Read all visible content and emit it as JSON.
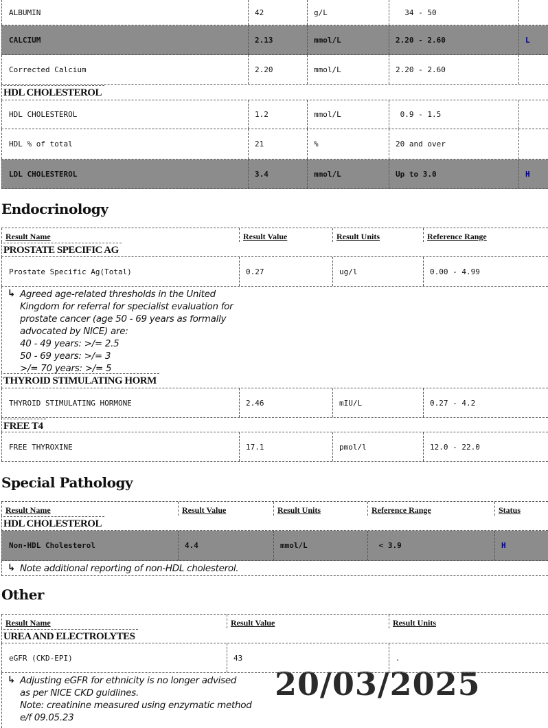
{
  "table_top": {
    "items": [
      {
        "type": "result",
        "name": "ALBUMIN",
        "value": "42",
        "units": "g/L",
        "range": "  34 - 50",
        "status": ""
      },
      {
        "type": "result",
        "name": "CALCIUM",
        "value": "2.13",
        "units": "mmol/L",
        "range": "2.20 - 2.60",
        "status": "L"
      },
      {
        "type": "result",
        "name": "Corrected Calcium",
        "value": "2.20",
        "units": "mmol/L",
        "range": "2.20 - 2.60",
        "status": ""
      },
      {
        "type": "group",
        "name": "HDL CHOLESTEROL"
      },
      {
        "type": "result",
        "name": "HDL CHOLESTEROL",
        "value": "1.2",
        "units": "mmol/L",
        "range": " 0.9 - 1.5",
        "status": ""
      },
      {
        "type": "result",
        "name": "HDL % of total",
        "value": "21",
        "units": "%",
        "range": "20 and over",
        "status": ""
      },
      {
        "type": "result",
        "name": "LDL CHOLESTEROL",
        "value": "3.4",
        "units": "mmol/L",
        "range": "Up to 3.0",
        "status": "H"
      }
    ]
  },
  "endocrinology": {
    "heading": "Endocrinology",
    "columns": [
      "Result Name",
      "Result Value",
      "Result Units",
      "Reference Range"
    ],
    "items": [
      {
        "type": "group",
        "name": "PROSTATE SPECIFIC AG"
      },
      {
        "type": "result",
        "name": "Prostate Specific Ag(Total)",
        "value": "0.27",
        "units": "ug/l",
        "range": "0.00 - 4.99"
      },
      {
        "type": "note",
        "text": "Agreed age-related thresholds in the United\nKingdom for referral for specialist evaluation for\nprostate cancer (age 50 - 69 years as formally\nadvocated by NICE) are:\n40 - 49 years: >/= 2.5\n50 - 69 years: >/= 3\n>/= 70 years: >/= 5"
      },
      {
        "type": "group",
        "name": "THYROID STIMULATING HORM"
      },
      {
        "type": "result",
        "name": "THYROID STIMULATING HORMONE",
        "value": "2.46",
        "units": "mIU/L",
        "range": "0.27 - 4.2"
      },
      {
        "type": "group",
        "name": "FREE T4"
      },
      {
        "type": "result",
        "name": "FREE THYROXINE",
        "value": "17.1",
        "units": "pmol/l",
        "range": "12.0 - 22.0"
      }
    ]
  },
  "special_pathology": {
    "heading": "Special Pathology",
    "columns": [
      "Result Name",
      "Result Value",
      "Result Units",
      "Reference Range",
      "Status"
    ],
    "items": [
      {
        "type": "group",
        "name": "HDL CHOLESTEROL"
      },
      {
        "type": "result",
        "name": "Non-HDL Cholesterol",
        "value": "4.4",
        "units": "mmol/L",
        "range": " < 3.9",
        "status": "H"
      },
      {
        "type": "note",
        "text": "Note additional reporting of non-HDL cholesterol."
      }
    ]
  },
  "other": {
    "heading": "Other",
    "columns": [
      "Result Name",
      "Result Value",
      "Result Units"
    ],
    "items": [
      {
        "type": "group",
        "name": "UREA AND ELECTROLYTES"
      },
      {
        "type": "result",
        "name": "eGFR (CKD-EPI)",
        "value": "43",
        "units": "."
      },
      {
        "type": "note",
        "text": "Adjusting eGFR for ethnicity is no longer advised\nas per NICE CKD guidlines.\nNote: creatinine measured using enzymatic method\ne/f 09.05.23"
      }
    ]
  },
  "date_stamp": "20/03/2025",
  "colors": {
    "flag_row": "#8c8c8c",
    "status_text": "#000080"
  },
  "icons": {
    "note_arrow": "return-arrow-icon"
  }
}
